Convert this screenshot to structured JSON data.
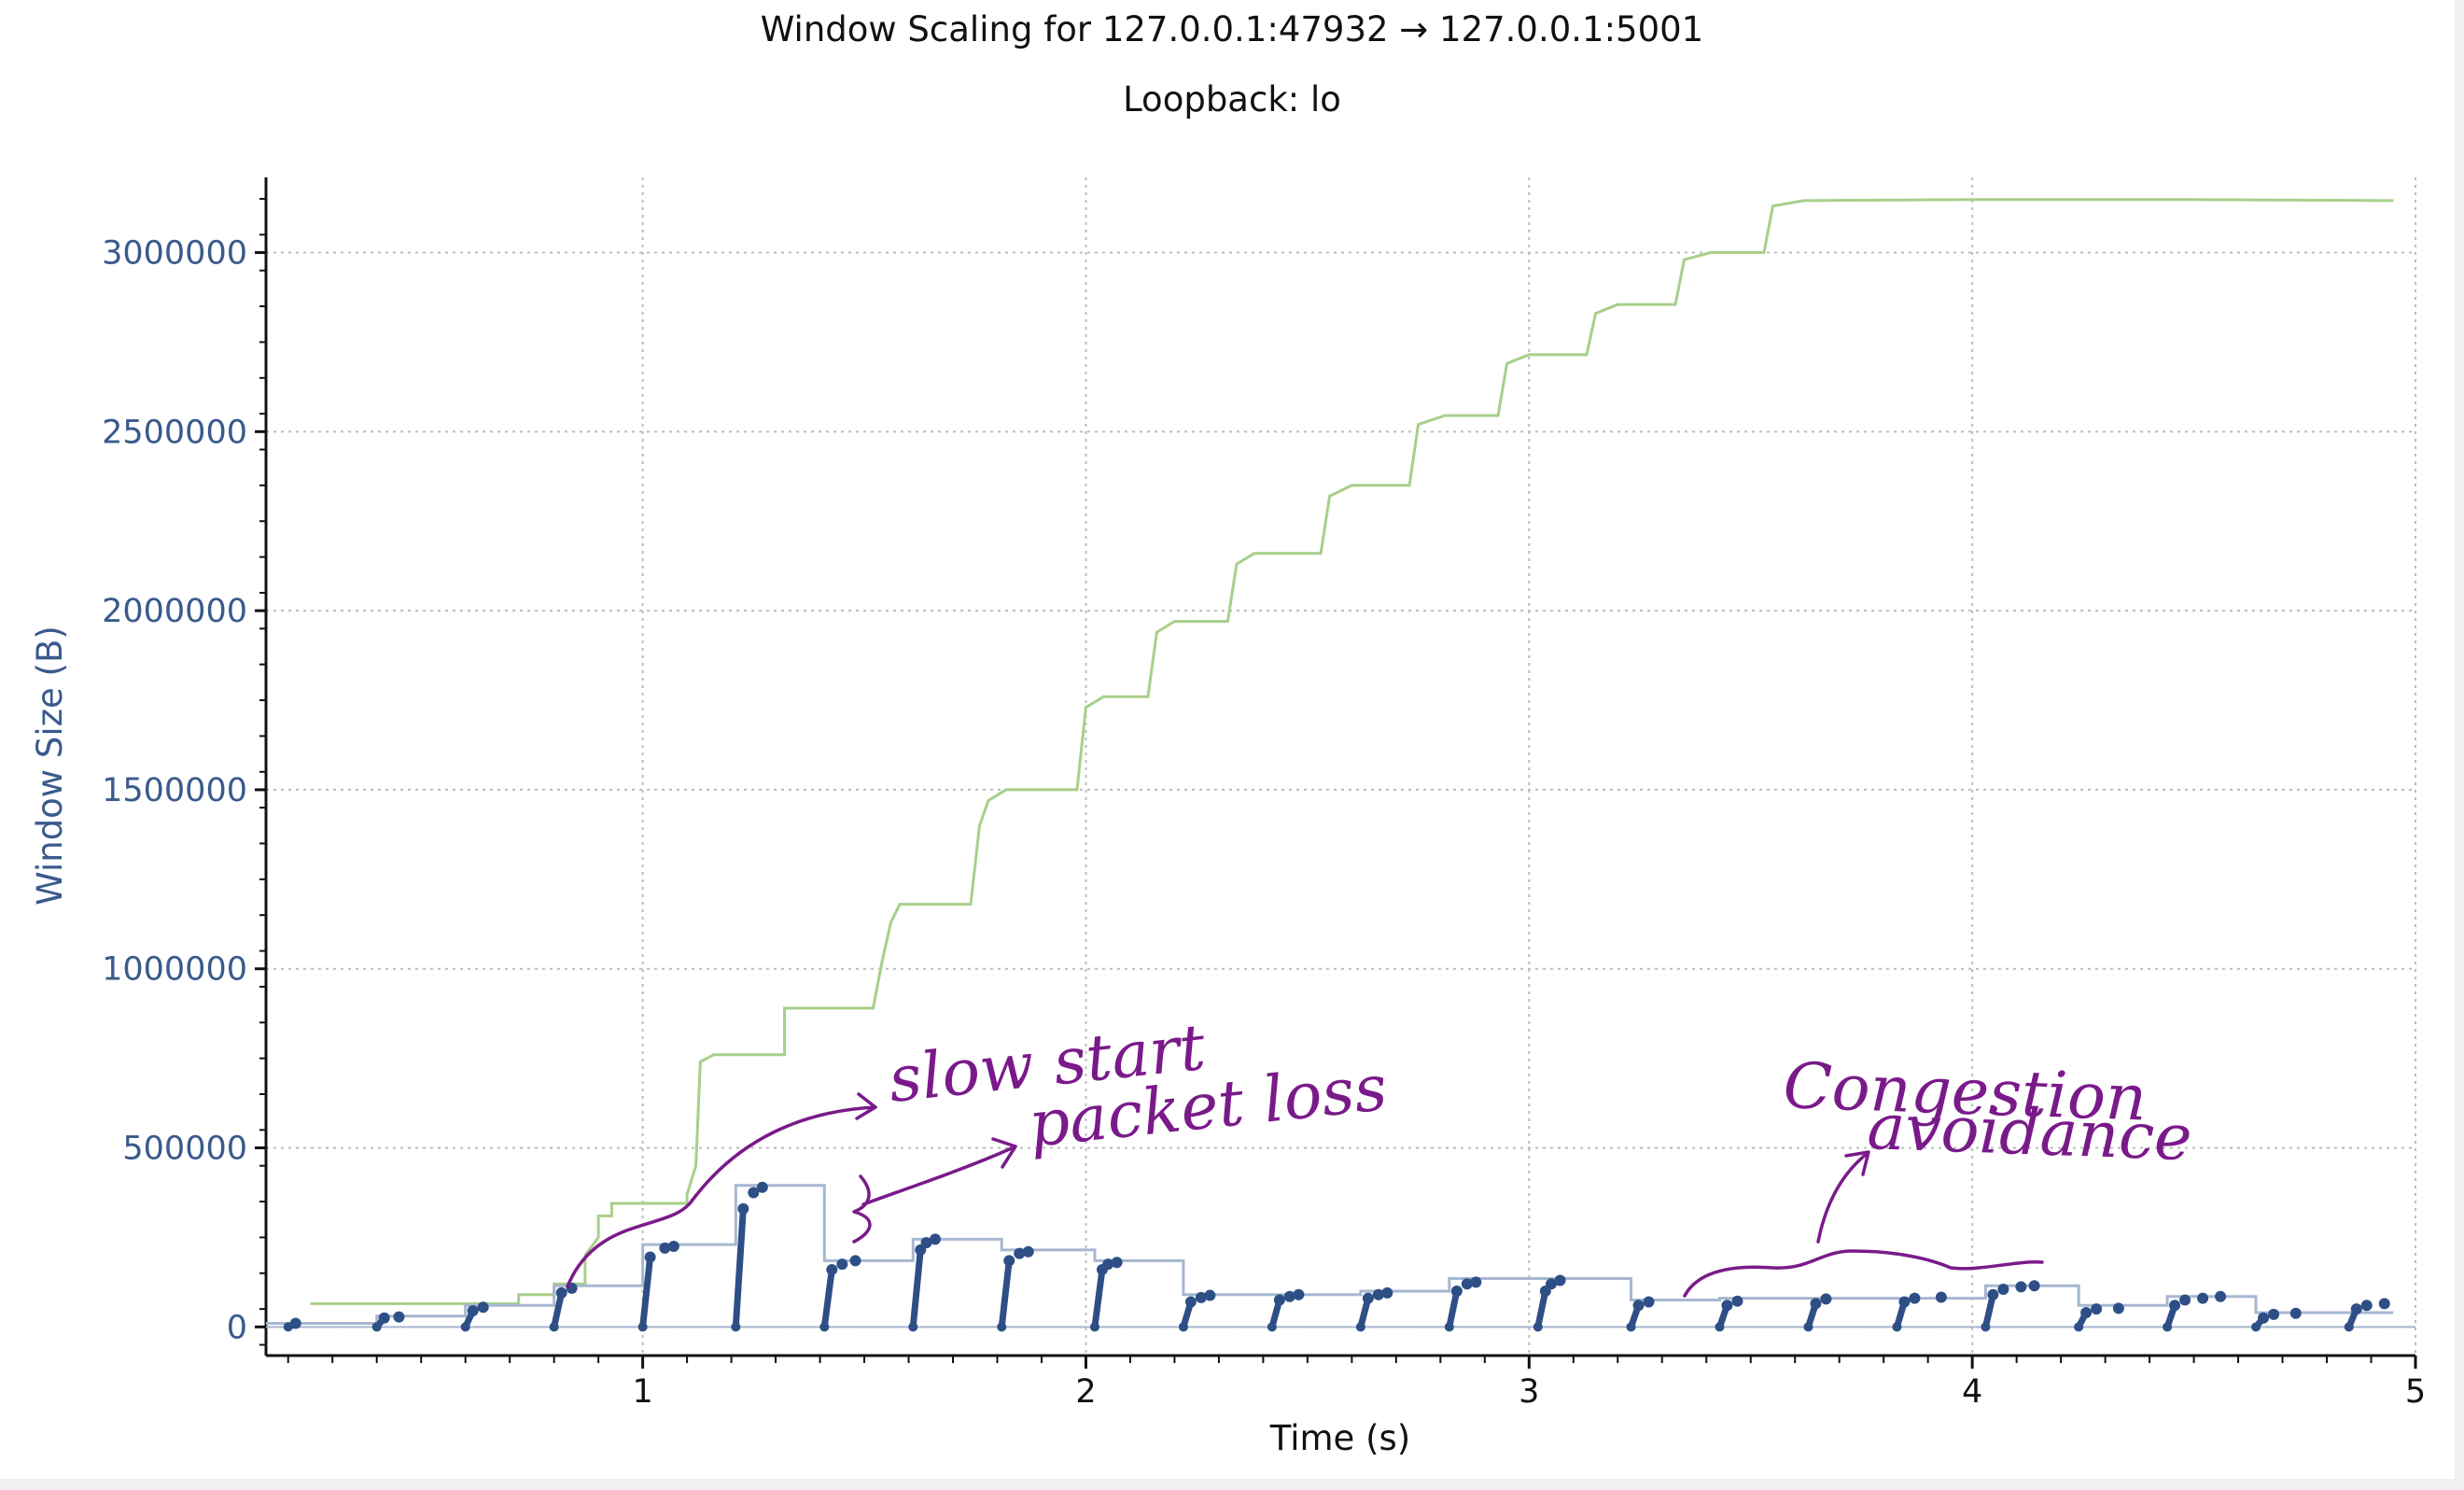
{
  "chart_data": {
    "type": "line",
    "title": "Window Scaling for 127.0.0.1:47932 → 127.0.0.1:5001",
    "subtitle": "Loopback: lo",
    "xlabel": "Time (s)",
    "ylabel": "Window Size (B)",
    "xlim": [
      0.15,
      5.0
    ],
    "ylim": [
      -80000,
      3210000
    ],
    "x_ticks": [
      1,
      2,
      3,
      4,
      5
    ],
    "y_ticks": [
      0,
      500000,
      1000000,
      1500000,
      2000000,
      2500000,
      3000000
    ],
    "y_tick_labels": [
      "0",
      "500000",
      "1000000",
      "1500000",
      "2000000",
      "2500000",
      "3000000"
    ],
    "x_tick_labels": [
      "1",
      "2",
      "3",
      "4",
      "5"
    ],
    "grid": true,
    "legend": "none",
    "colors": {
      "receive_window": "#a8cf8a",
      "bytes_out": "#2e4f86",
      "bytes_out_line": "#a6b7d0",
      "annotation": "#7a1a8a"
    },
    "series": [
      {
        "points": [
          [
            0.25,
            65000
          ],
          [
            0.72,
            65000
          ],
          [
            0.72,
            90000
          ],
          [
            0.8,
            90000
          ],
          [
            0.8,
            120000
          ],
          [
            0.87,
            120000
          ],
          [
            0.87,
            200000
          ],
          [
            0.9,
            250000
          ],
          [
            0.9,
            310000
          ],
          [
            0.93,
            310000
          ],
          [
            0.93,
            345000
          ],
          [
            1.1,
            345000
          ],
          [
            1.1,
            370000
          ],
          [
            1.12,
            450000
          ],
          [
            1.13,
            740000
          ],
          [
            1.16,
            760000
          ],
          [
            1.32,
            760000
          ],
          [
            1.32,
            890000
          ],
          [
            1.52,
            890000
          ],
          [
            1.54,
            1020000
          ],
          [
            1.56,
            1130000
          ],
          [
            1.58,
            1180000
          ],
          [
            1.74,
            1180000
          ],
          [
            1.76,
            1400000
          ],
          [
            1.78,
            1470000
          ],
          [
            1.82,
            1500000
          ],
          [
            1.98,
            1500000
          ],
          [
            2.0,
            1730000
          ],
          [
            2.04,
            1760000
          ],
          [
            2.14,
            1760000
          ],
          [
            2.16,
            1940000
          ],
          [
            2.2,
            1970000
          ],
          [
            2.32,
            1970000
          ],
          [
            2.34,
            2130000
          ],
          [
            2.38,
            2160000
          ],
          [
            2.53,
            2160000
          ],
          [
            2.55,
            2320000
          ],
          [
            2.6,
            2350000
          ],
          [
            2.73,
            2350000
          ],
          [
            2.75,
            2520000
          ],
          [
            2.81,
            2545000
          ],
          [
            2.93,
            2545000
          ],
          [
            2.95,
            2690000
          ],
          [
            3.0,
            2715000
          ],
          [
            3.13,
            2715000
          ],
          [
            3.15,
            2830000
          ],
          [
            3.2,
            2855000
          ],
          [
            3.33,
            2855000
          ],
          [
            3.35,
            2980000
          ],
          [
            3.41,
            3000000
          ],
          [
            3.53,
            3000000
          ],
          [
            3.55,
            3130000
          ],
          [
            3.62,
            3145000
          ],
          [
            4.0,
            3148000
          ],
          [
            4.5,
            3148000
          ],
          [
            4.95,
            3145000
          ]
        ]
      },
      {
        "step_points": [
          [
            0.15,
            10000
          ],
          [
            0.4,
            10000
          ],
          [
            0.4,
            30000
          ],
          [
            0.6,
            30000
          ],
          [
            0.6,
            60000
          ],
          [
            0.8,
            60000
          ],
          [
            0.8,
            115000
          ],
          [
            1.0,
            115000
          ],
          [
            1.0,
            230000
          ],
          [
            1.21,
            230000
          ],
          [
            1.21,
            395000
          ],
          [
            1.41,
            395000
          ],
          [
            1.41,
            185000
          ],
          [
            1.61,
            185000
          ],
          [
            1.61,
            245000
          ],
          [
            1.81,
            245000
          ],
          [
            1.81,
            215000
          ],
          [
            2.02,
            215000
          ],
          [
            2.02,
            185000
          ],
          [
            2.22,
            185000
          ],
          [
            2.22,
            90000
          ],
          [
            2.62,
            90000
          ],
          [
            2.62,
            100000
          ],
          [
            2.82,
            100000
          ],
          [
            2.82,
            135000
          ],
          [
            3.23,
            135000
          ],
          [
            3.23,
            75000
          ],
          [
            3.43,
            75000
          ],
          [
            3.43,
            80000
          ],
          [
            4.03,
            80000
          ],
          [
            4.03,
            115000
          ],
          [
            4.24,
            115000
          ],
          [
            4.24,
            60000
          ],
          [
            4.44,
            60000
          ],
          [
            4.44,
            85000
          ],
          [
            4.64,
            85000
          ],
          [
            4.64,
            40000
          ],
          [
            4.95,
            40000
          ]
        ],
        "bursts": [
          {
            "x": 0.2,
            "top": 10000,
            "tail": []
          },
          {
            "x": 0.4,
            "top": 25000,
            "tail": [
              [
                0.45,
                28000
              ]
            ]
          },
          {
            "x": 0.6,
            "top": 45000,
            "tail": [
              [
                0.64,
                55000
              ]
            ]
          },
          {
            "x": 0.8,
            "top": 95000,
            "tail": [
              [
                0.84,
                108000
              ]
            ]
          },
          {
            "x": 1.0,
            "top": 195000,
            "tail": [
              [
                1.05,
                220000
              ],
              [
                1.07,
                225000
              ]
            ]
          },
          {
            "x": 1.21,
            "top": 330000,
            "tail": [
              [
                1.25,
                375000
              ],
              [
                1.27,
                390000
              ]
            ]
          },
          {
            "x": 1.41,
            "top": 160000,
            "tail": [
              [
                1.45,
                175000
              ],
              [
                1.48,
                185000
              ]
            ]
          },
          {
            "x": 1.61,
            "top": 215000,
            "tail": [
              [
                1.64,
                235000
              ],
              [
                1.66,
                245000
              ]
            ]
          },
          {
            "x": 1.81,
            "top": 185000,
            "tail": [
              [
                1.85,
                205000
              ],
              [
                1.87,
                210000
              ]
            ]
          },
          {
            "x": 2.02,
            "top": 160000,
            "tail": [
              [
                2.05,
                175000
              ],
              [
                2.07,
                180000
              ]
            ]
          },
          {
            "x": 2.22,
            "top": 70000,
            "tail": [
              [
                2.26,
                82000
              ],
              [
                2.28,
                88000
              ]
            ]
          },
          {
            "x": 2.42,
            "top": 75000,
            "tail": [
              [
                2.46,
                85000
              ],
              [
                2.48,
                90000
              ]
            ]
          },
          {
            "x": 2.62,
            "top": 80000,
            "tail": [
              [
                2.66,
                90000
              ],
              [
                2.68,
                95000
              ]
            ]
          },
          {
            "x": 2.82,
            "top": 100000,
            "tail": [
              [
                2.86,
                120000
              ],
              [
                2.88,
                125000
              ]
            ]
          },
          {
            "x": 3.02,
            "top": 100000,
            "tail": [
              [
                3.05,
                120000
              ],
              [
                3.07,
                130000
              ]
            ]
          },
          {
            "x": 3.23,
            "top": 60000,
            "tail": [
              [
                3.27,
                70000
              ]
            ]
          },
          {
            "x": 3.43,
            "top": 60000,
            "tail": [
              [
                3.47,
                72000
              ]
            ]
          },
          {
            "x": 3.63,
            "top": 65000,
            "tail": [
              [
                3.67,
                78000
              ]
            ]
          },
          {
            "x": 3.83,
            "top": 70000,
            "tail": [
              [
                3.87,
                80000
              ],
              [
                3.93,
                83000
              ]
            ]
          },
          {
            "x": 4.03,
            "top": 90000,
            "tail": [
              [
                4.07,
                105000
              ],
              [
                4.11,
                112000
              ],
              [
                4.14,
                115000
              ]
            ]
          },
          {
            "x": 4.24,
            "top": 40000,
            "tail": [
              [
                4.28,
                50000
              ],
              [
                4.33,
                52000
              ]
            ]
          },
          {
            "x": 4.44,
            "top": 60000,
            "tail": [
              [
                4.48,
                75000
              ],
              [
                4.52,
                80000
              ],
              [
                4.56,
                85000
              ]
            ]
          },
          {
            "x": 4.64,
            "top": 25000,
            "tail": [
              [
                4.68,
                35000
              ],
              [
                4.73,
                38000
              ]
            ]
          },
          {
            "x": 4.85,
            "top": 50000,
            "tail": [
              [
                4.89,
                60000
              ],
              [
                4.93,
                65000
              ]
            ]
          }
        ]
      }
    ],
    "annotations": [
      {
        "text": "slow start"
      },
      {
        "text": "packet loss"
      },
      {
        "text": "Congestion"
      },
      {
        "text": "avoidance"
      }
    ]
  }
}
